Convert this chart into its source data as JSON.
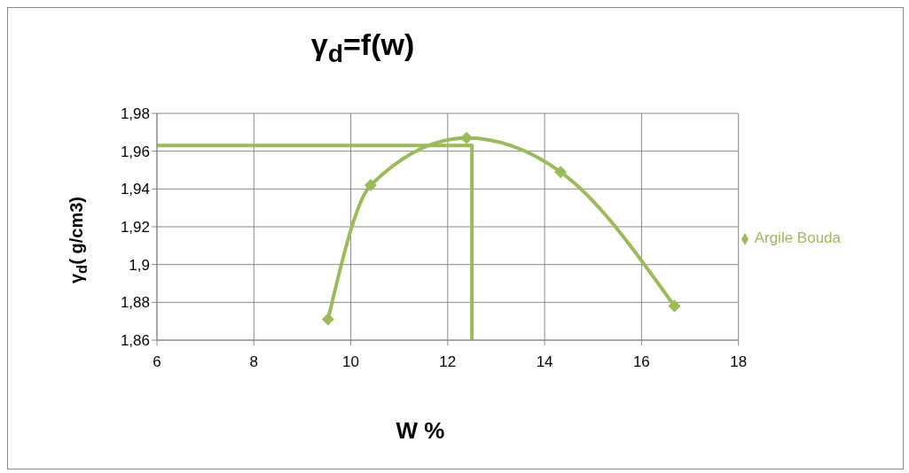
{
  "chart_data": {
    "type": "line",
    "title": "γ$_{d}$=f(w)",
    "xlabel": "W %",
    "ylabel": "γ$_{d}$( g/cm3)",
    "xlim": [
      6,
      18
    ],
    "xticks": [
      6,
      8,
      10,
      12,
      14,
      16,
      18
    ],
    "ylim": [
      1.86,
      1.98
    ],
    "yticks": [
      {
        "value": 1.86,
        "label": "1,86"
      },
      {
        "value": 1.88,
        "label": "1,88"
      },
      {
        "value": 1.9,
        "label": "1,9"
      },
      {
        "value": 1.92,
        "label": "1,92"
      },
      {
        "value": 1.94,
        "label": "1,94"
      },
      {
        "value": 1.96,
        "label": "1,96"
      },
      {
        "value": 1.98,
        "label": "1,98"
      }
    ],
    "grid": true,
    "legend": "right",
    "marker": "diamond",
    "series": [
      {
        "name": "Argile Bouda",
        "color": "#9bbb59",
        "x": [
          9.53,
          10.41,
          12.39,
          14.33,
          16.68
        ],
        "values": [
          1.871,
          1.942,
          1.967,
          1.949,
          1.878
        ]
      },
      {
        "color": "#9bbb59",
        "marker": "none",
        "x": [
          6,
          12.5
        ],
        "values": [
          1.963,
          1.963
        ]
      },
      {
        "color": "#9bbb59",
        "marker": "none",
        "x": [
          12.5,
          12.5
        ],
        "values": [
          1.963,
          1.86
        ]
      }
    ]
  }
}
